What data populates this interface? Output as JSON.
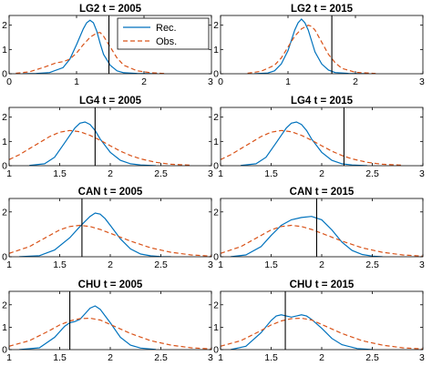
{
  "chart_data": {
    "type": "line",
    "layout": "4x2 grid of density panels",
    "legend": {
      "placement": "top-right of first panel",
      "entries": [
        {
          "label": "Rec.",
          "color": "#0072BD",
          "style": "solid"
        },
        {
          "label": "Obs.",
          "color": "#D95319",
          "style": "dashed"
        }
      ]
    },
    "panels": [
      {
        "title": "LG2  t = 2005",
        "xlim": [
          0,
          3
        ],
        "ylim": [
          0,
          2.4
        ],
        "xticks": [
          "0",
          "1",
          "2",
          "3"
        ],
        "yticks": [
          "0",
          "1",
          "2"
        ],
        "vline": 1.48,
        "series": [
          {
            "name": "Rec.",
            "x": [
              0.2,
              0.4,
              0.6,
              0.8,
              0.9,
              1.0,
              1.1,
              1.15,
              1.2,
              1.25,
              1.3,
              1.35,
              1.4,
              1.5,
              1.6,
              1.7,
              1.9,
              2.2
            ],
            "y": [
              0,
              0.01,
              0.05,
              0.25,
              0.6,
              1.2,
              1.85,
              2.1,
              2.2,
              2.1,
              1.75,
              1.25,
              0.8,
              0.35,
              0.12,
              0.04,
              0.01,
              0
            ]
          },
          {
            "name": "Obs.",
            "x": [
              0.1,
              0.3,
              0.5,
              0.7,
              0.8,
              0.9,
              1.0,
              1.1,
              1.2,
              1.3,
              1.35,
              1.4,
              1.5,
              1.6,
              1.7,
              1.9,
              2.1,
              2.3
            ],
            "y": [
              0.02,
              0.08,
              0.25,
              0.45,
              0.5,
              0.6,
              0.85,
              1.2,
              1.5,
              1.68,
              1.7,
              1.55,
              1.1,
              0.65,
              0.35,
              0.12,
              0.04,
              0.01
            ]
          }
        ]
      },
      {
        "title": "LG2  t = 2015",
        "xlim": [
          0,
          3
        ],
        "ylim": [
          0,
          2.4
        ],
        "xticks": [
          "0",
          "1",
          "2",
          "3"
        ],
        "yticks": [
          "0",
          "1",
          "2"
        ],
        "vline": 1.65,
        "series": [
          {
            "name": "Rec.",
            "x": [
              0.5,
              0.7,
              0.8,
              0.9,
              1.0,
              1.1,
              1.15,
              1.2,
              1.25,
              1.3,
              1.35,
              1.4,
              1.5,
              1.6,
              1.7,
              1.9,
              2.2
            ],
            "y": [
              0,
              0.03,
              0.12,
              0.4,
              0.95,
              1.8,
              2.1,
              2.25,
              2.1,
              1.8,
              1.35,
              0.9,
              0.4,
              0.15,
              0.05,
              0.01,
              0
            ]
          },
          {
            "name": "Obs.",
            "x": [
              0.4,
              0.6,
              0.8,
              0.9,
              1.0,
              1.1,
              1.2,
              1.3,
              1.35,
              1.4,
              1.5,
              1.6,
              1.7,
              1.8,
              2.0,
              2.3
            ],
            "y": [
              0.02,
              0.1,
              0.35,
              0.65,
              1.1,
              1.55,
              1.85,
              2.0,
              1.95,
              1.8,
              1.3,
              0.8,
              0.45,
              0.22,
              0.06,
              0.01
            ]
          }
        ]
      },
      {
        "title": "LG4  t = 2005",
        "xlim": [
          1,
          3
        ],
        "ylim": [
          0,
          2.4
        ],
        "xticks": [
          "1",
          "1.5",
          "2",
          "2.5",
          "3"
        ],
        "yticks": [
          "0",
          "1",
          "2"
        ],
        "vline": 1.85,
        "series": [
          {
            "name": "Rec.",
            "x": [
              1.2,
              1.35,
              1.45,
              1.55,
              1.65,
              1.7,
              1.75,
              1.8,
              1.85,
              1.9,
              2.0,
              2.1,
              2.2,
              2.3,
              2.45
            ],
            "y": [
              0.01,
              0.08,
              0.35,
              0.95,
              1.55,
              1.75,
              1.8,
              1.7,
              1.45,
              1.1,
              0.55,
              0.22,
              0.08,
              0.03,
              0
            ]
          },
          {
            "name": "Obs.",
            "x": [
              1.0,
              1.1,
              1.2,
              1.3,
              1.4,
              1.5,
              1.6,
              1.7,
              1.8,
              1.9,
              2.0,
              2.1,
              2.2,
              2.3,
              2.45,
              2.6,
              2.8
            ],
            "y": [
              0.25,
              0.45,
              0.7,
              0.95,
              1.2,
              1.38,
              1.45,
              1.4,
              1.25,
              1.05,
              0.82,
              0.6,
              0.42,
              0.28,
              0.14,
              0.06,
              0.02
            ]
          }
        ]
      },
      {
        "title": "LG4  t = 2015",
        "xlim": [
          1,
          3
        ],
        "ylim": [
          0,
          2.4
        ],
        "xticks": [
          "1",
          "1.5",
          "2",
          "2.5",
          "3"
        ],
        "yticks": [
          "0",
          "1",
          "2"
        ],
        "vline": 2.22,
        "series": [
          {
            "name": "Rec.",
            "x": [
              1.2,
              1.35,
              1.45,
              1.55,
              1.65,
              1.7,
              1.75,
              1.8,
              1.85,
              1.9,
              2.0,
              2.1,
              2.2,
              2.3,
              2.45
            ],
            "y": [
              0.01,
              0.08,
              0.35,
              0.95,
              1.55,
              1.75,
              1.8,
              1.7,
              1.45,
              1.1,
              0.55,
              0.22,
              0.08,
              0.03,
              0
            ]
          },
          {
            "name": "Obs.",
            "x": [
              1.0,
              1.1,
              1.2,
              1.3,
              1.4,
              1.5,
              1.6,
              1.7,
              1.8,
              1.9,
              2.0,
              2.1,
              2.2,
              2.3,
              2.45,
              2.6,
              2.8
            ],
            "y": [
              0.25,
              0.45,
              0.7,
              0.95,
              1.2,
              1.38,
              1.45,
              1.4,
              1.25,
              1.05,
              0.82,
              0.6,
              0.42,
              0.28,
              0.14,
              0.06,
              0.02
            ]
          }
        ]
      },
      {
        "title": "CAN  t = 2005",
        "xlim": [
          1,
          3
        ],
        "ylim": [
          0,
          2.6
        ],
        "xticks": [
          "1",
          "1.5",
          "2",
          "2.5",
          "3"
        ],
        "yticks": [
          "0",
          "2"
        ],
        "vline": 1.72,
        "series": [
          {
            "name": "Rec.",
            "x": [
              1.1,
              1.3,
              1.45,
              1.6,
              1.7,
              1.8,
              1.85,
              1.9,
              1.95,
              2.0,
              2.1,
              2.2,
              2.3,
              2.4,
              2.5,
              2.6
            ],
            "y": [
              0,
              0.05,
              0.3,
              0.85,
              1.35,
              1.8,
              1.95,
              1.9,
              1.7,
              1.4,
              0.8,
              0.35,
              0.12,
              0.04,
              0.01,
              0
            ]
          },
          {
            "name": "Obs.",
            "x": [
              1.0,
              1.2,
              1.4,
              1.5,
              1.6,
              1.7,
              1.8,
              1.9,
              2.0,
              2.2,
              2.4,
              2.6,
              2.8,
              3.0
            ],
            "y": [
              0.15,
              0.45,
              0.95,
              1.2,
              1.35,
              1.4,
              1.35,
              1.22,
              1.05,
              0.7,
              0.4,
              0.2,
              0.08,
              0.03
            ]
          }
        ]
      },
      {
        "title": "CAN  t = 2015",
        "xlim": [
          1,
          3
        ],
        "ylim": [
          0,
          2.6
        ],
        "xticks": [
          "1",
          "1.5",
          "2",
          "2.5",
          "3"
        ],
        "yticks": [
          "0",
          "2"
        ],
        "vline": 1.95,
        "series": [
          {
            "name": "Rec.",
            "x": [
              1.1,
              1.25,
              1.4,
              1.5,
              1.6,
              1.7,
              1.8,
              1.9,
              2.0,
              2.1,
              2.2,
              2.3,
              2.4,
              2.5,
              2.6
            ],
            "y": [
              0,
              0.08,
              0.45,
              0.95,
              1.4,
              1.65,
              1.75,
              1.8,
              1.65,
              1.2,
              0.65,
              0.28,
              0.1,
              0.03,
              0
            ]
          },
          {
            "name": "Obs.",
            "x": [
              1.0,
              1.2,
              1.4,
              1.5,
              1.6,
              1.7,
              1.8,
              1.9,
              2.0,
              2.2,
              2.4,
              2.6,
              2.8,
              3.0
            ],
            "y": [
              0.15,
              0.45,
              0.95,
              1.2,
              1.35,
              1.4,
              1.35,
              1.22,
              1.05,
              0.7,
              0.4,
              0.2,
              0.08,
              0.03
            ]
          }
        ]
      },
      {
        "title": "CHU  t = 2005",
        "xlim": [
          1,
          3
        ],
        "ylim": [
          0,
          2.6
        ],
        "xticks": [
          "1",
          "1.5",
          "2",
          "2.5",
          "3"
        ],
        "yticks": [
          "0",
          "1",
          "2"
        ],
        "vline": 1.6,
        "series": [
          {
            "name": "Rec.",
            "x": [
              1.1,
              1.3,
              1.45,
              1.55,
              1.6,
              1.65,
              1.7,
              1.75,
              1.8,
              1.85,
              1.9,
              2.0,
              2.1,
              2.2,
              2.3,
              2.45
            ],
            "y": [
              0,
              0.08,
              0.55,
              1.05,
              1.2,
              1.25,
              1.35,
              1.6,
              1.85,
              1.95,
              1.8,
              1.2,
              0.55,
              0.2,
              0.07,
              0.01
            ]
          },
          {
            "name": "Obs.",
            "x": [
              1.0,
              1.2,
              1.4,
              1.5,
              1.6,
              1.7,
              1.8,
              1.9,
              2.0,
              2.2,
              2.4,
              2.6,
              2.8,
              3.0
            ],
            "y": [
              0.15,
              0.4,
              0.85,
              1.1,
              1.28,
              1.38,
              1.4,
              1.32,
              1.12,
              0.72,
              0.4,
              0.2,
              0.08,
              0.03
            ]
          }
        ]
      },
      {
        "title": "CHU  t = 2015",
        "xlim": [
          1,
          3
        ],
        "ylim": [
          0,
          2.6
        ],
        "xticks": [
          "1",
          "1.5",
          "2",
          "2.5",
          "3"
        ],
        "yticks": [
          "0",
          "1",
          "2"
        ],
        "vline": 1.64,
        "series": [
          {
            "name": "Rec.",
            "x": [
              1.1,
              1.25,
              1.4,
              1.5,
              1.55,
              1.6,
              1.65,
              1.7,
              1.75,
              1.8,
              1.85,
              1.9,
              2.0,
              2.1,
              2.2,
              2.35,
              2.5
            ],
            "y": [
              0,
              0.15,
              0.75,
              1.3,
              1.5,
              1.55,
              1.5,
              1.45,
              1.5,
              1.55,
              1.5,
              1.35,
              0.95,
              0.5,
              0.22,
              0.05,
              0
            ]
          },
          {
            "name": "Obs.",
            "x": [
              1.0,
              1.2,
              1.4,
              1.5,
              1.6,
              1.7,
              1.8,
              1.9,
              2.0,
              2.2,
              2.4,
              2.6,
              2.8,
              3.0
            ],
            "y": [
              0.15,
              0.4,
              0.85,
              1.1,
              1.28,
              1.38,
              1.4,
              1.32,
              1.12,
              0.72,
              0.4,
              0.2,
              0.08,
              0.03
            ]
          }
        ]
      }
    ]
  }
}
